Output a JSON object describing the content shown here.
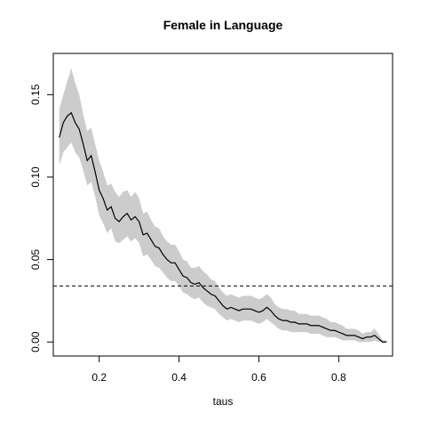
{
  "chart_data": {
    "type": "line",
    "title": "Female in Language",
    "xlabel": "taus",
    "ylabel": "",
    "xlim": [
      0.085,
      0.935
    ],
    "ylim": [
      -0.0085,
      0.175
    ],
    "x_ticks": [
      {
        "value": 0.2,
        "label": "0.2"
      },
      {
        "value": 0.4,
        "label": "0.4"
      },
      {
        "value": 0.6,
        "label": "0.6"
      },
      {
        "value": 0.8,
        "label": "0.8"
      }
    ],
    "y_ticks": [
      {
        "value": 0.0,
        "label": "0.00"
      },
      {
        "value": 0.05,
        "label": "0.05"
      },
      {
        "value": 0.1,
        "label": "0.10"
      },
      {
        "value": 0.15,
        "label": "0.15"
      }
    ],
    "reference_line": {
      "y": 0.034,
      "style": "dashed",
      "color": "#000000"
    },
    "band_color": "#cccccc",
    "line_color": "#000000",
    "grid": false,
    "series": [
      {
        "x": [
          0.1,
          0.11,
          0.12,
          0.13,
          0.14,
          0.15,
          0.16,
          0.17,
          0.18,
          0.19,
          0.2,
          0.21,
          0.22,
          0.23,
          0.24,
          0.25,
          0.26,
          0.27,
          0.28,
          0.29,
          0.3,
          0.31,
          0.32,
          0.33,
          0.34,
          0.35,
          0.36,
          0.37,
          0.38,
          0.39,
          0.4,
          0.41,
          0.42,
          0.43,
          0.44,
          0.45,
          0.46,
          0.47,
          0.48,
          0.49,
          0.5,
          0.51,
          0.52,
          0.53,
          0.54,
          0.55,
          0.56,
          0.57,
          0.58,
          0.59,
          0.6,
          0.61,
          0.62,
          0.63,
          0.64,
          0.65,
          0.66,
          0.67,
          0.68,
          0.69,
          0.7,
          0.71,
          0.72,
          0.73,
          0.74,
          0.75,
          0.76,
          0.77,
          0.78,
          0.79,
          0.8,
          0.81,
          0.82,
          0.83,
          0.84,
          0.85,
          0.86,
          0.87,
          0.88,
          0.89,
          0.9,
          0.91,
          0.92
        ],
        "y": [
          0.124,
          0.133,
          0.137,
          0.139,
          0.133,
          0.129,
          0.12,
          0.11,
          0.113,
          0.103,
          0.092,
          0.087,
          0.08,
          0.082,
          0.075,
          0.073,
          0.076,
          0.078,
          0.074,
          0.076,
          0.073,
          0.065,
          0.066,
          0.062,
          0.058,
          0.057,
          0.053,
          0.05,
          0.048,
          0.048,
          0.044,
          0.04,
          0.039,
          0.036,
          0.035,
          0.036,
          0.033,
          0.031,
          0.029,
          0.028,
          0.025,
          0.022,
          0.02,
          0.021,
          0.02,
          0.019,
          0.02,
          0.02,
          0.02,
          0.019,
          0.018,
          0.019,
          0.021,
          0.019,
          0.016,
          0.014,
          0.013,
          0.013,
          0.012,
          0.012,
          0.011,
          0.011,
          0.011,
          0.01,
          0.01,
          0.01,
          0.009,
          0.008,
          0.007,
          0.007,
          0.006,
          0.005,
          0.004,
          0.004,
          0.004,
          0.003,
          0.002,
          0.003,
          0.003,
          0.004,
          0.002,
          0.0,
          0.0
        ],
        "lower": [
          0.107,
          0.115,
          0.118,
          0.121,
          0.115,
          0.112,
          0.104,
          0.095,
          0.097,
          0.088,
          0.077,
          0.072,
          0.066,
          0.069,
          0.061,
          0.06,
          0.062,
          0.064,
          0.061,
          0.063,
          0.06,
          0.052,
          0.053,
          0.05,
          0.046,
          0.045,
          0.042,
          0.039,
          0.037,
          0.037,
          0.034,
          0.03,
          0.029,
          0.027,
          0.026,
          0.027,
          0.024,
          0.022,
          0.021,
          0.02,
          0.017,
          0.015,
          0.013,
          0.014,
          0.013,
          0.012,
          0.013,
          0.013,
          0.013,
          0.012,
          0.011,
          0.012,
          0.014,
          0.012,
          0.01,
          0.008,
          0.007,
          0.007,
          0.006,
          0.006,
          0.006,
          0.006,
          0.006,
          0.005,
          0.005,
          0.005,
          0.004,
          0.003,
          0.003,
          0.003,
          0.002,
          0.001,
          0.001,
          0.001,
          0.001,
          0.0,
          0.0,
          0.0,
          0.0,
          0.001,
          0.0,
          0.0,
          0.0
        ],
        "upper": [
          0.141,
          0.15,
          0.158,
          0.166,
          0.157,
          0.15,
          0.138,
          0.128,
          0.13,
          0.12,
          0.11,
          0.103,
          0.095,
          0.096,
          0.091,
          0.088,
          0.091,
          0.092,
          0.088,
          0.091,
          0.087,
          0.078,
          0.079,
          0.074,
          0.07,
          0.069,
          0.064,
          0.061,
          0.059,
          0.059,
          0.055,
          0.05,
          0.049,
          0.045,
          0.045,
          0.046,
          0.043,
          0.041,
          0.038,
          0.037,
          0.033,
          0.03,
          0.028,
          0.029,
          0.028,
          0.027,
          0.028,
          0.028,
          0.028,
          0.027,
          0.026,
          0.027,
          0.029,
          0.027,
          0.023,
          0.021,
          0.02,
          0.02,
          0.019,
          0.019,
          0.017,
          0.017,
          0.017,
          0.016,
          0.016,
          0.016,
          0.015,
          0.014,
          0.012,
          0.012,
          0.011,
          0.01,
          0.008,
          0.008,
          0.008,
          0.007,
          0.005,
          0.006,
          0.006,
          0.008,
          0.005,
          0.001,
          0.001
        ]
      }
    ]
  }
}
